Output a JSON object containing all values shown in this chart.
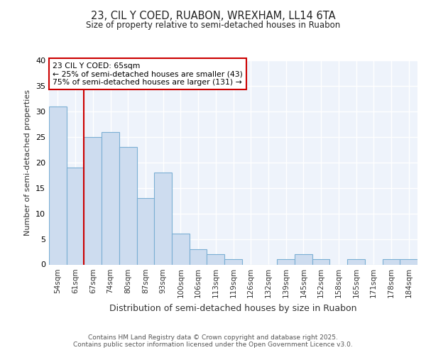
{
  "title1": "23, CIL Y COED, RUABON, WREXHAM, LL14 6TA",
  "title2": "Size of property relative to semi-detached houses in Ruabon",
  "xlabel": "Distribution of semi-detached houses by size in Ruabon",
  "ylabel": "Number of semi-detached properties",
  "categories": [
    "54sqm",
    "61sqm",
    "67sqm",
    "74sqm",
    "80sqm",
    "87sqm",
    "93sqm",
    "100sqm",
    "106sqm",
    "113sqm",
    "119sqm",
    "126sqm",
    "132sqm",
    "139sqm",
    "145sqm",
    "152sqm",
    "158sqm",
    "165sqm",
    "171sqm",
    "178sqm",
    "184sqm"
  ],
  "values": [
    31,
    19,
    25,
    26,
    23,
    13,
    18,
    6,
    3,
    2,
    1,
    0,
    0,
    1,
    2,
    1,
    0,
    1,
    0,
    1,
    1
  ],
  "bar_color": "#cddcef",
  "bar_edge_color": "#7bafd4",
  "vline_x": 1.5,
  "vline_color": "#cc0000",
  "annotation_title": "23 CIL Y COED: 65sqm",
  "annotation_line1": "← 25% of semi-detached houses are smaller (43)",
  "annotation_line2": "75% of semi-detached houses are larger (131) →",
  "annotation_box_color": "#ffffff",
  "annotation_box_edge": "#cc0000",
  "ylim": [
    0,
    40
  ],
  "yticks": [
    0,
    5,
    10,
    15,
    20,
    25,
    30,
    35,
    40
  ],
  "footer1": "Contains HM Land Registry data © Crown copyright and database right 2025.",
  "footer2": "Contains public sector information licensed under the Open Government Licence v3.0.",
  "bg_color": "#ffffff",
  "plot_bg_color": "#eef3fb",
  "grid_color": "#ffffff"
}
